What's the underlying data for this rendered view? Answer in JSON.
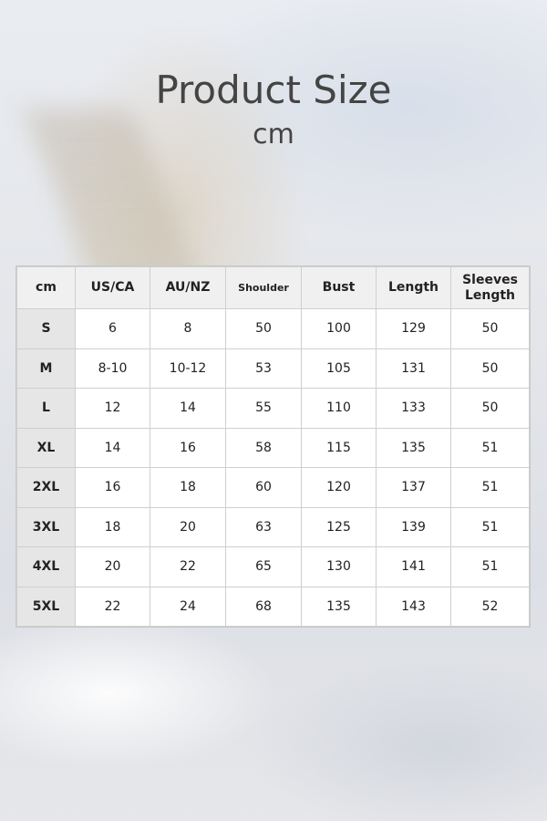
{
  "title": "Product Size",
  "unit": "cm",
  "table": {
    "headers": [
      "cm",
      "US/CA",
      "AU/NZ",
      "Shoulder",
      "Bust",
      "Length",
      "Sleeves Length"
    ],
    "rows": [
      [
        "S",
        "6",
        "8",
        "50",
        "100",
        "129",
        "50"
      ],
      [
        "M",
        "8-10",
        "10-12",
        "53",
        "105",
        "131",
        "50"
      ],
      [
        "L",
        "12",
        "14",
        "55",
        "110",
        "133",
        "50"
      ],
      [
        "XL",
        "14",
        "16",
        "58",
        "115",
        "135",
        "51"
      ],
      [
        "2XL",
        "16",
        "18",
        "60",
        "120",
        "137",
        "51"
      ],
      [
        "3XL",
        "18",
        "20",
        "63",
        "125",
        "139",
        "51"
      ],
      [
        "4XL",
        "20",
        "22",
        "65",
        "130",
        "141",
        "51"
      ],
      [
        "5XL",
        "22",
        "24",
        "68",
        "135",
        "143",
        "52"
      ]
    ]
  }
}
